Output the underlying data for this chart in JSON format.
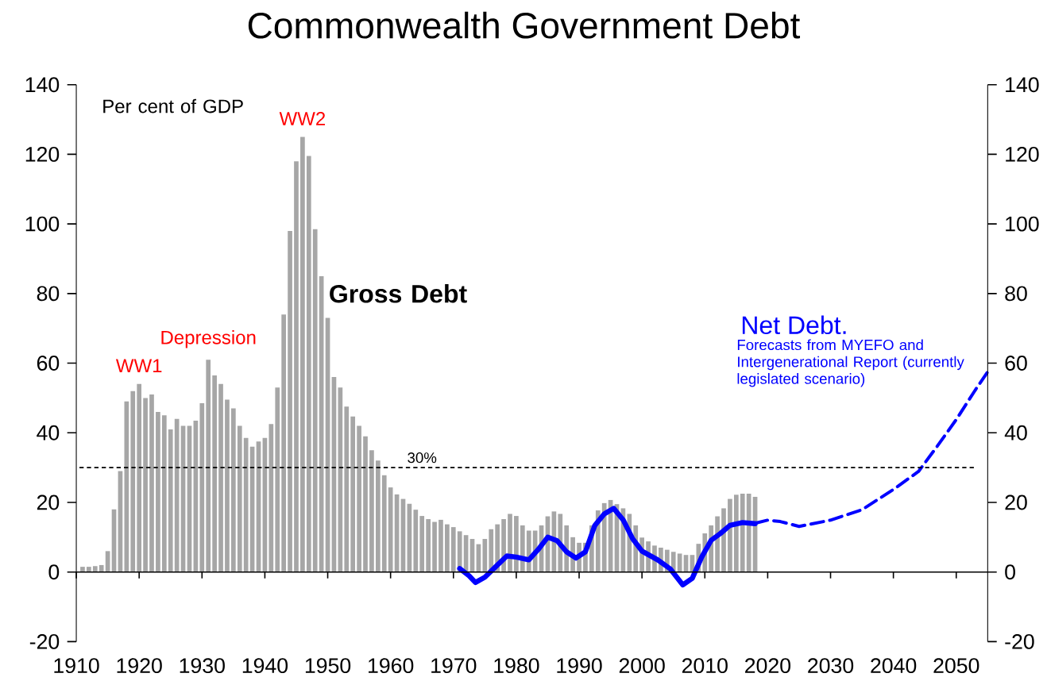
{
  "chart_data": {
    "type": "bar",
    "title": "Commonwealth Government Debt",
    "xlim": [
      1910,
      2055
    ],
    "xticks": [
      1910,
      1920,
      1930,
      1940,
      1950,
      1960,
      1970,
      1980,
      1990,
      2000,
      2010,
      2020,
      2030,
      2040,
      2050
    ],
    "ylim": [
      -20,
      140
    ],
    "yticks": [
      -20,
      0,
      20,
      40,
      60,
      80,
      100,
      120,
      140
    ],
    "y2lim": [
      -20,
      140
    ],
    "y2ticks": [
      -20,
      0,
      20,
      40,
      60,
      80,
      100,
      120,
      140
    ],
    "series": [
      {
        "color": "#a6a6a6",
        "x": [
          1911,
          1912,
          1913,
          1914,
          1915,
          1916,
          1917,
          1918,
          1919,
          1920,
          1921,
          1922,
          1923,
          1924,
          1925,
          1926,
          1927,
          1928,
          1929,
          1930,
          1931,
          1932,
          1933,
          1934,
          1935,
          1936,
          1937,
          1938,
          1939,
          1940,
          1941,
          1942,
          1943,
          1944,
          1945,
          1946,
          1947,
          1948,
          1949,
          1950,
          1951,
          1952,
          1953,
          1954,
          1955,
          1956,
          1957,
          1958,
          1959,
          1960,
          1961,
          1962,
          1963,
          1964,
          1965,
          1966,
          1967,
          1968,
          1969,
          1970,
          1971,
          1972,
          1973,
          1974,
          1975,
          1976,
          1977,
          1978,
          1979,
          1980,
          1981,
          1982,
          1983,
          1984,
          1985,
          1986,
          1987,
          1988,
          1989,
          1990,
          1991,
          1992,
          1993,
          1994,
          1995,
          1996,
          1997,
          1998,
          1999,
          2000,
          2001,
          2002,
          2003,
          2004,
          2005,
          2006,
          2007,
          2008,
          2009,
          2010,
          2011,
          2012,
          2013,
          2014,
          2015,
          2016,
          2017,
          2018
        ],
        "values": [
          1.5,
          1.5,
          1.7,
          2,
          6,
          18,
          29,
          49,
          52,
          54,
          50,
          51,
          46,
          45,
          41,
          44,
          42,
          42,
          43.5,
          48.5,
          61,
          56.5,
          54,
          49.5,
          47,
          42,
          38.5,
          36,
          37.5,
          38.5,
          42.5,
          53,
          74,
          98,
          118,
          125,
          119.5,
          98.5,
          85,
          73,
          56,
          53,
          47.5,
          44.7,
          42,
          39,
          35,
          32,
          27.8,
          24.3,
          22.3,
          21,
          19.6,
          17.9,
          16.1,
          15.2,
          14.4,
          15,
          13.7,
          12.9,
          11.7,
          10.6,
          9.5,
          8,
          9.5,
          12.3,
          13.7,
          15.2,
          16.7,
          16.1,
          13.4,
          11.9,
          11.9,
          13.4,
          16,
          17.4,
          16.7,
          13.4,
          10,
          8.4,
          8.4,
          13.4,
          17.7,
          19.8,
          20.7,
          19.5,
          18.3,
          16.7,
          13.4,
          9.9,
          8.8,
          7.6,
          7,
          6.4,
          5.8,
          5.3,
          4.9,
          4.9,
          8.1,
          11.1,
          13.4,
          16,
          18.3,
          21,
          22.2,
          22.5,
          22.5,
          21.6
        ]
      },
      {
        "type": "line",
        "color": "#0000ff",
        "line_style": "solid",
        "x": [
          1971,
          1972.5,
          1973.5,
          1975,
          1977,
          1978.5,
          1980,
          1982,
          1983.5,
          1985,
          1986.5,
          1988,
          1989.5,
          1991,
          1992.5,
          1994,
          1995.5,
          1997,
          1998.5,
          2000,
          2002.5,
          2004.5,
          2006.5,
          2008,
          2009.5,
          2011,
          2012.5,
          2014,
          2016,
          2018
        ],
        "values": [
          1,
          -1.1,
          -3,
          -1.5,
          2,
          4.6,
          4.3,
          3.5,
          6.5,
          10,
          9,
          5.8,
          4,
          5.8,
          13.4,
          16.7,
          18.3,
          15,
          9.6,
          6,
          3.5,
          0.9,
          -3.7,
          -1.8,
          4.3,
          9.1,
          11.1,
          13.4,
          14.2,
          13.9
        ]
      },
      {
        "name": "Net Debt.",
        "type": "line",
        "color": "#0000ff",
        "line_style": "dashed",
        "x": [
          2018,
          2020,
          2022,
          2025,
          2030,
          2035,
          2040,
          2044,
          2047,
          2050,
          2053,
          2055
        ],
        "values": [
          14,
          14.9,
          14.5,
          13.1,
          14.9,
          17.9,
          23.7,
          28.9,
          36.2,
          43.8,
          52.2,
          57.5
        ]
      }
    ],
    "ref_lines": [
      {
        "axis": "y",
        "value": 30,
        "label": "30%",
        "color": "#000000",
        "line_style": "dashed"
      }
    ],
    "annotations": [
      "Per cent of GDP",
      {
        "text": "WW1",
        "x": 1920,
        "y": 54
      },
      {
        "text": "Depression",
        "x": 1931,
        "y": 61
      },
      {
        "text": "WW2",
        "x": 1946,
        "y": 125
      },
      "Forecasts from MYEFO and Intergenerational Report (currently legislated scenario)",
      "Gross Debt"
    ]
  }
}
